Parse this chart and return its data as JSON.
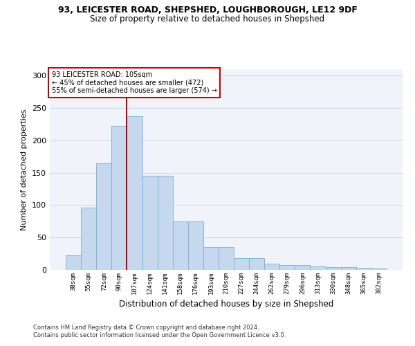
{
  "title1": "93, LEICESTER ROAD, SHEPSHED, LOUGHBOROUGH, LE12 9DF",
  "title2": "Size of property relative to detached houses in Shepshed",
  "xlabel": "Distribution of detached houses by size in Shepshed",
  "ylabel": "Number of detached properties",
  "categories": [
    "38sqm",
    "55sqm",
    "72sqm",
    "90sqm",
    "107sqm",
    "124sqm",
    "141sqm",
    "158sqm",
    "176sqm",
    "193sqm",
    "210sqm",
    "227sqm",
    "244sqm",
    "262sqm",
    "279sqm",
    "296sqm",
    "313sqm",
    "330sqm",
    "348sqm",
    "365sqm",
    "382sqm"
  ],
  "values": [
    22,
    96,
    165,
    222,
    237,
    145,
    145,
    75,
    75,
    35,
    35,
    18,
    18,
    10,
    8,
    8,
    5,
    4,
    4,
    3,
    2
  ],
  "bar_color": "#c5d8ed",
  "bar_edge_color": "#7aaed6",
  "annotation_line1": "93 LEICESTER ROAD: 105sqm",
  "annotation_line2": "← 45% of detached houses are smaller (472)",
  "annotation_line3": "55% of semi-detached houses are larger (574) →",
  "vline_color": "#cc0000",
  "box_edge_color": "#cc0000",
  "grid_color": "#d0d8e8",
  "background_color": "#f0f4fa",
  "footnote1": "Contains HM Land Registry data © Crown copyright and database right 2024.",
  "footnote2": "Contains public sector information licensed under the Open Government Licence v3.0.",
  "ylim": [
    0,
    310
  ],
  "vline_bin_index": 4
}
